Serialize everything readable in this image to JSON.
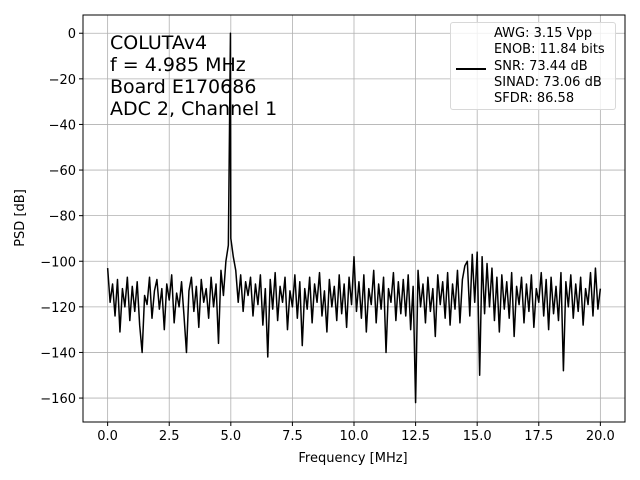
{
  "chart_data": {
    "type": "line",
    "xlabel": "Frequency [MHz]",
    "ylabel": "PSD [dB]",
    "annotation": [
      "COLUTAv4",
      "f = 4.985 MHz",
      "Board E170686",
      "ADC 2, Channel 1"
    ],
    "legend": "upper right",
    "grid": true,
    "xlim": [
      -1,
      21
    ],
    "ylim": [
      -170.5,
      8
    ],
    "xticks": [
      {
        "value": 0,
        "label": "0.0"
      },
      2.5,
      {
        "value": 5,
        "label": "5.0"
      },
      7.5,
      {
        "value": 10,
        "label": "10.0"
      },
      12.5,
      {
        "value": 15,
        "label": "15.0"
      },
      17.5,
      {
        "value": 20,
        "label": "20.0"
      }
    ],
    "yticks": [
      0,
      {
        "value": -20,
        "label": "−20"
      },
      {
        "value": -40,
        "label": "−40"
      },
      {
        "value": -60,
        "label": "−60"
      },
      {
        "value": -80,
        "label": "−80"
      },
      {
        "value": -100,
        "label": "−100"
      },
      {
        "value": -120,
        "label": "−120"
      },
      {
        "value": -140,
        "label": "−140"
      },
      {
        "value": -160,
        "label": "−160"
      }
    ],
    "x": [
      0,
      0.1,
      0.2,
      0.3,
      0.4,
      0.5,
      0.6,
      0.7,
      0.8,
      0.9,
      1,
      1.1,
      1.2,
      1.3,
      1.4,
      1.5,
      1.6,
      1.7,
      1.8,
      1.9,
      2,
      2.1,
      2.2,
      2.3,
      2.4,
      2.5,
      2.6,
      2.7,
      2.8,
      2.9,
      3,
      3.1,
      3.2,
      3.3,
      3.4,
      3.5,
      3.6,
      3.7,
      3.8,
      3.9,
      4,
      4.1,
      4.2,
      4.3,
      4.4,
      4.5,
      4.6,
      4.7,
      4.8,
      4.9,
      4.985,
      5,
      5.1,
      5.2,
      5.3,
      5.4,
      5.5,
      5.6,
      5.7,
      5.8,
      5.9,
      6,
      6.1,
      6.2,
      6.3,
      6.4,
      6.5,
      6.6,
      6.7,
      6.8,
      6.9,
      7,
      7.1,
      7.2,
      7.3,
      7.4,
      7.5,
      7.6,
      7.7,
      7.8,
      7.9,
      8,
      8.1,
      8.2,
      8.3,
      8.4,
      8.5,
      8.6,
      8.7,
      8.8,
      8.9,
      9,
      9.1,
      9.2,
      9.3,
      9.4,
      9.5,
      9.6,
      9.7,
      9.8,
      9.9,
      10,
      10.1,
      10.2,
      10.3,
      10.4,
      10.5,
      10.6,
      10.7,
      10.8,
      10.9,
      11,
      11.1,
      11.2,
      11.3,
      11.4,
      11.5,
      11.6,
      11.7,
      11.8,
      11.9,
      12,
      12.1,
      12.2,
      12.3,
      12.4,
      12.5,
      12.6,
      12.7,
      12.8,
      12.9,
      13,
      13.1,
      13.2,
      13.3,
      13.4,
      13.5,
      13.6,
      13.7,
      13.8,
      13.9,
      14,
      14.1,
      14.2,
      14.3,
      14.4,
      14.5,
      14.6,
      14.7,
      14.8,
      14.9,
      15,
      15.1,
      15.2,
      15.3,
      15.4,
      15.5,
      15.6,
      15.7,
      15.8,
      15.9,
      16,
      16.1,
      16.2,
      16.3,
      16.4,
      16.5,
      16.6,
      16.7,
      16.8,
      16.9,
      17,
      17.1,
      17.2,
      17.3,
      17.4,
      17.5,
      17.6,
      17.7,
      17.8,
      17.9,
      18,
      18.1,
      18.2,
      18.3,
      18.4,
      18.5,
      18.6,
      18.7,
      18.8,
      18.9,
      19,
      19.1,
      19.2,
      19.3,
      19.4,
      19.5,
      19.6,
      19.7,
      19.8,
      19.9,
      20
    ],
    "series": [
      {
        "name": "AWG: 3.15 Vpp\nENOB: 11.84 bits\nSNR: 73.44 dB\nSINAD: 73.06 dB\nSFDR: 86.58",
        "color": "#000000",
        "values": [
          -103,
          -118,
          -110,
          -124,
          -108,
          -131,
          -112,
          -120,
          -107,
          -126,
          -111,
          -122,
          -109,
          -128,
          -140,
          -115,
          -119,
          -107,
          -125,
          -113,
          -108,
          -121,
          -112,
          -130,
          -110,
          -117,
          -106,
          -127,
          -114,
          -120,
          -109,
          -124,
          -140,
          -113,
          -107,
          -122,
          -111,
          -129,
          -108,
          -118,
          -112,
          -125,
          -107,
          -120,
          -110,
          -136,
          -104,
          -115,
          -100,
          -93,
          0,
          -90,
          -98,
          -104,
          -118,
          -106,
          -122,
          -109,
          -115,
          -107,
          -124,
          -110,
          -119,
          -106,
          -128,
          -112,
          -142,
          -108,
          -121,
          -105,
          -126,
          -111,
          -118,
          -107,
          -130,
          -113,
          -120,
          -106,
          -125,
          -109,
          -137,
          -112,
          -121,
          -107,
          -127,
          -110,
          -118,
          -105,
          -124,
          -113,
          -131,
          -108,
          -120,
          -111,
          -126,
          -106,
          -123,
          -110,
          -129,
          -107,
          -119,
          -98,
          -122,
          -109,
          -125,
          -106,
          -131,
          -112,
          -119,
          -104,
          -127,
          -110,
          -121,
          -107,
          -140,
          -112,
          -118,
          -105,
          -126,
          -109,
          -123,
          -108,
          -124,
          -106,
          -130,
          -111,
          -162,
          -104,
          -120,
          -110,
          -127,
          -107,
          -122,
          -112,
          -133,
          -106,
          -119,
          -109,
          -125,
          -105,
          -128,
          -110,
          -121,
          -104,
          -127,
          -108,
          -102,
          -100,
          -124,
          -97,
          -118,
          -96,
          -150,
          -98,
          -123,
          -101,
          -120,
          -103,
          -126,
          -107,
          -131,
          -106,
          -121,
          -109,
          -125,
          -105,
          -133,
          -111,
          -119,
          -107,
          -127,
          -110,
          -122,
          -106,
          -129,
          -112,
          -118,
          -105,
          -124,
          -108,
          -130,
          -107,
          -123,
          -111,
          -126,
          -105,
          -148,
          -109,
          -120,
          -106,
          -125,
          -110,
          -122,
          -107,
          -128,
          -112,
          -119,
          -105,
          -124,
          -103,
          -121,
          -112
        ]
      }
    ]
  }
}
